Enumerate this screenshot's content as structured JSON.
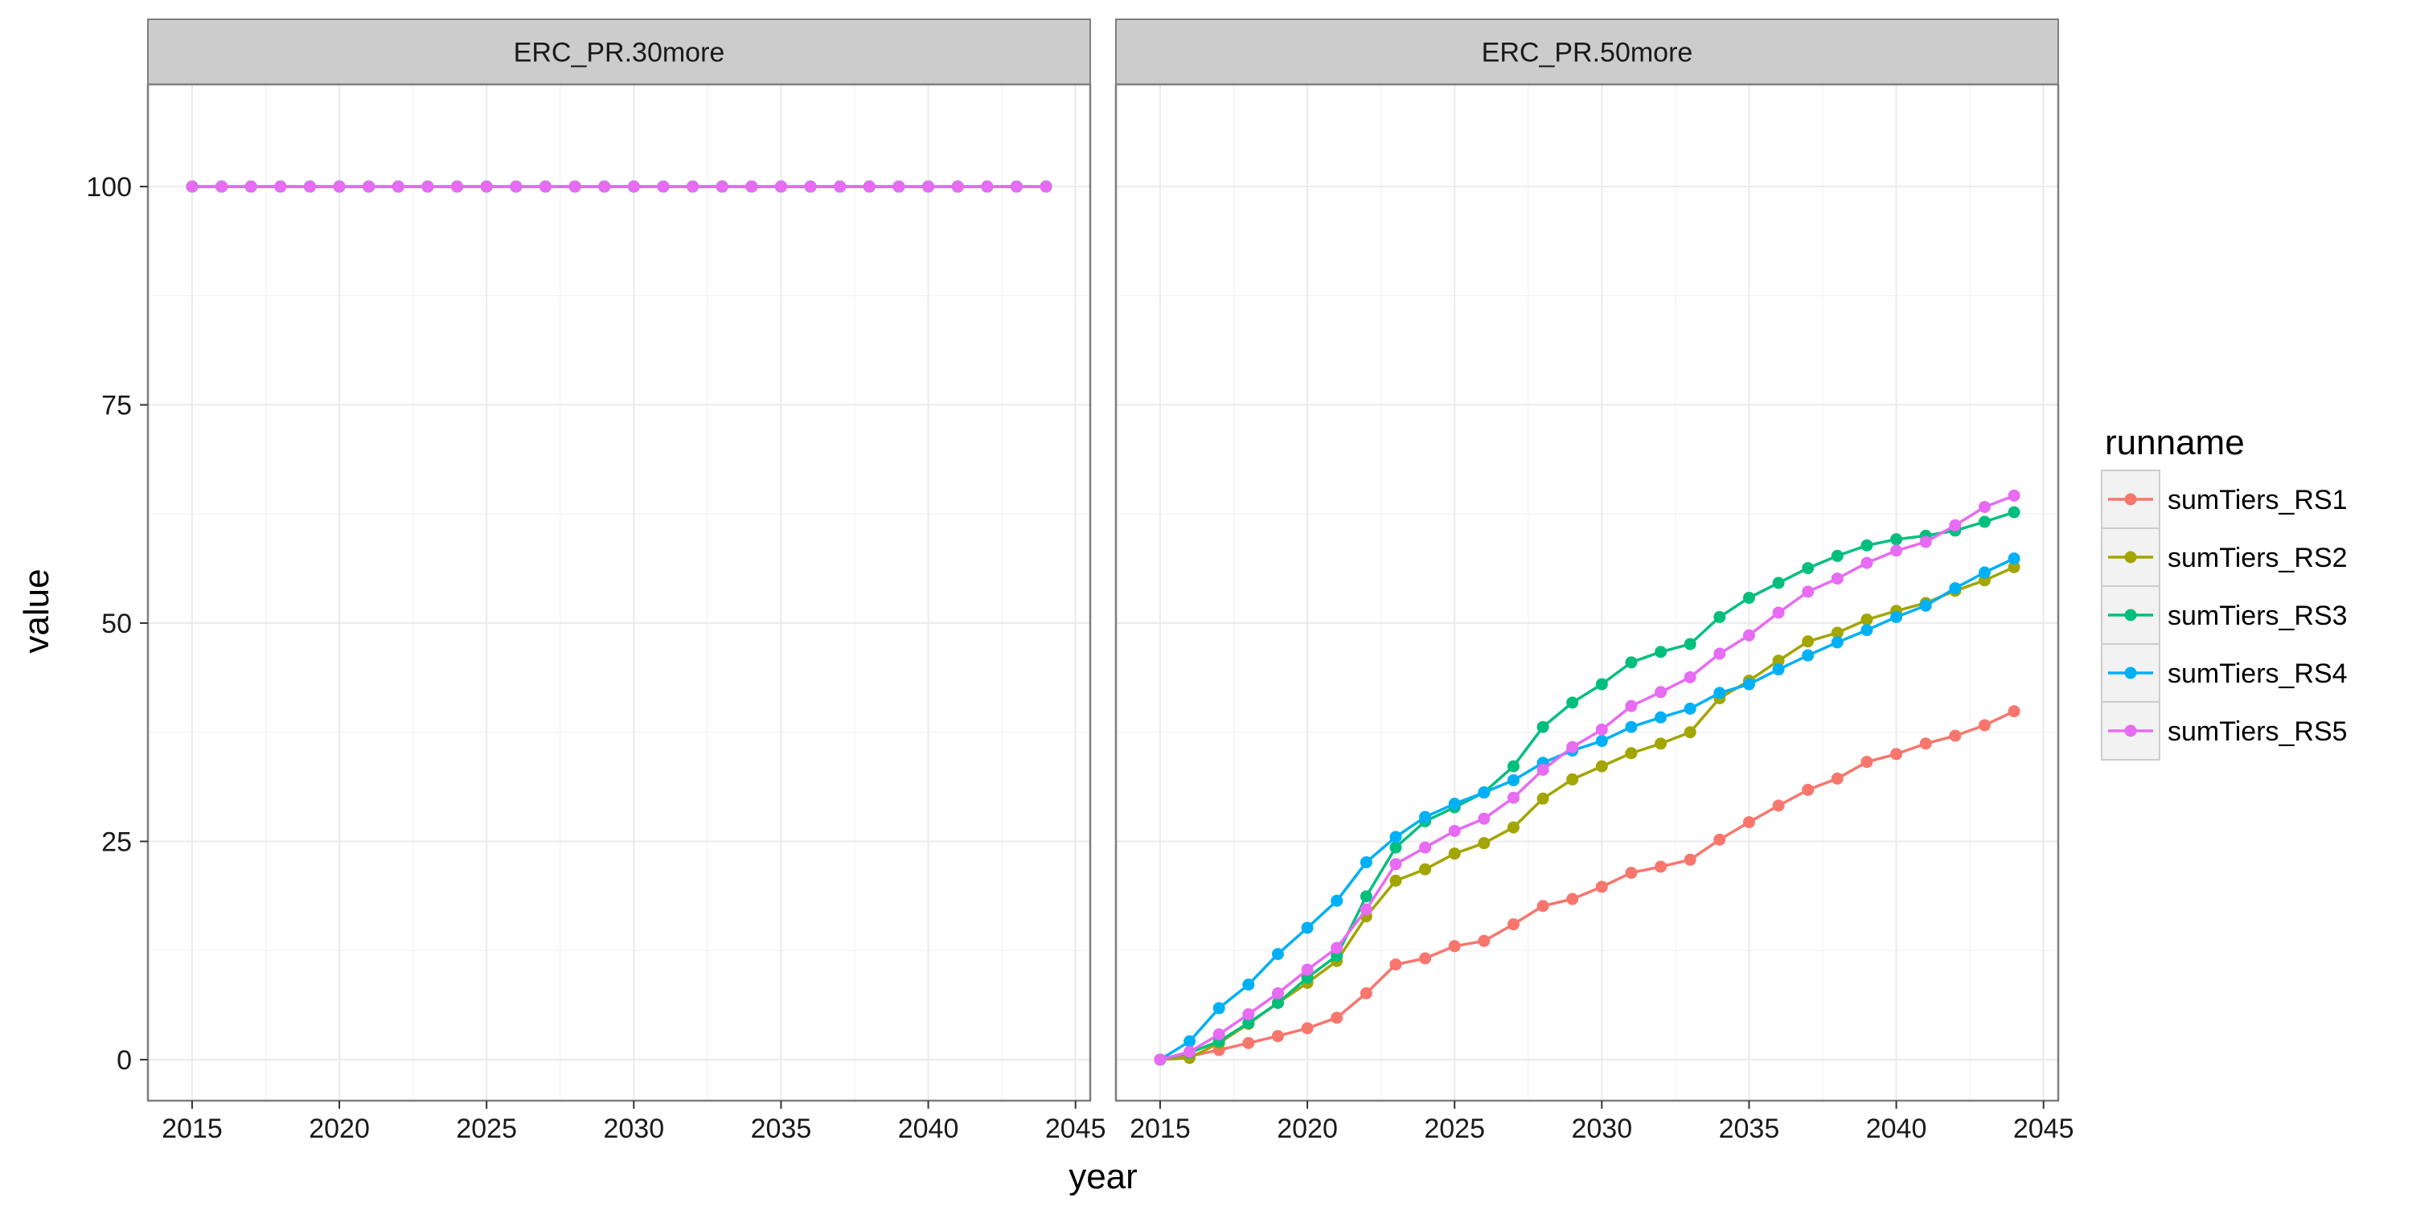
{
  "chart_data": {
    "type": "line",
    "xlabel": "year",
    "ylabel": "value",
    "xlim": [
      2013.5,
      2045.5
    ],
    "ylim": [
      -4.7,
      111.7
    ],
    "x_ticks": [
      2015,
      2020,
      2025,
      2030,
      2035,
      2040,
      2045
    ],
    "y_ticks": [
      0,
      25,
      50,
      75,
      100
    ],
    "grid": true,
    "legend": {
      "title": "runname",
      "placement": "right"
    },
    "x": [
      2015,
      2016,
      2017,
      2018,
      2019,
      2020,
      2021,
      2022,
      2023,
      2024,
      2025,
      2026,
      2027,
      2028,
      2029,
      2030,
      2031,
      2032,
      2033,
      2034,
      2035,
      2036,
      2037,
      2038,
      2039,
      2040,
      2041,
      2042,
      2043,
      2044
    ],
    "series_meta": [
      {
        "name": "sumTiers_RS1",
        "color": "#F8766D"
      },
      {
        "name": "sumTiers_RS2",
        "color": "#A3A500"
      },
      {
        "name": "sumTiers_RS3",
        "color": "#00BF7D"
      },
      {
        "name": "sumTiers_RS4",
        "color": "#00B0F6"
      },
      {
        "name": "sumTiers_RS5",
        "color": "#E76BF3"
      }
    ],
    "panels": [
      {
        "title": "ERC_PR.30more",
        "series": [
          {
            "name": "sumTiers_RS1",
            "values": [
              100,
              100,
              100,
              100,
              100,
              100,
              100,
              100,
              100,
              100,
              100,
              100,
              100,
              100,
              100,
              100,
              100,
              100,
              100,
              100,
              100,
              100,
              100,
              100,
              100,
              100,
              100,
              100,
              100,
              100
            ]
          },
          {
            "name": "sumTiers_RS2",
            "values": [
              100,
              100,
              100,
              100,
              100,
              100,
              100,
              100,
              100,
              100,
              100,
              100,
              100,
              100,
              100,
              100,
              100,
              100,
              100,
              100,
              100,
              100,
              100,
              100,
              100,
              100,
              100,
              100,
              100,
              100
            ]
          },
          {
            "name": "sumTiers_RS3",
            "values": [
              100,
              100,
              100,
              100,
              100,
              100,
              100,
              100,
              100,
              100,
              100,
              100,
              100,
              100,
              100,
              100,
              100,
              100,
              100,
              100,
              100,
              100,
              100,
              100,
              100,
              100,
              100,
              100,
              100,
              100
            ]
          },
          {
            "name": "sumTiers_RS4",
            "values": [
              100,
              100,
              100,
              100,
              100,
              100,
              100,
              100,
              100,
              100,
              100,
              100,
              100,
              100,
              100,
              100,
              100,
              100,
              100,
              100,
              100,
              100,
              100,
              100,
              100,
              100,
              100,
              100,
              100,
              100
            ]
          },
          {
            "name": "sumTiers_RS5",
            "values": [
              100,
              100,
              100,
              100,
              100,
              100,
              100,
              100,
              100,
              100,
              100,
              100,
              100,
              100,
              100,
              100,
              100,
              100,
              100,
              100,
              100,
              100,
              100,
              100,
              100,
              100,
              100,
              100,
              100,
              100
            ]
          }
        ]
      },
      {
        "title": "ERC_PR.50more",
        "series": [
          {
            "name": "sumTiers_RS1",
            "values": [
              0,
              0.4,
              1.1,
              1.9,
              2.7,
              3.6,
              4.8,
              7.6,
              10.9,
              11.6,
              13,
              13.6,
              15.5,
              17.6,
              18.4,
              19.8,
              21.4,
              22.1,
              22.9,
              25.2,
              27.2,
              29.1,
              30.9,
              32.2,
              34.1,
              35,
              36.2,
              37.1,
              38.3,
              39.9
            ]
          },
          {
            "name": "sumTiers_RS2",
            "values": [
              0,
              0.2,
              1.9,
              4.1,
              6.5,
              8.8,
              11.3,
              16.4,
              20.5,
              21.8,
              23.6,
              24.8,
              26.6,
              29.9,
              32.1,
              33.6,
              35.1,
              36.2,
              37.5,
              41.4,
              43.4,
              45.7,
              47.9,
              48.9,
              50.4,
              51.4,
              52.3,
              53.7,
              54.9,
              56.4
            ]
          },
          {
            "name": "sumTiers_RS3",
            "values": [
              0,
              0.8,
              2.1,
              4.2,
              6.5,
              9.4,
              11.9,
              18.7,
              24.3,
              27.3,
              28.9,
              30.6,
              33.6,
              38.1,
              40.9,
              43,
              45.5,
              46.7,
              47.6,
              50.7,
              52.9,
              54.6,
              56.3,
              57.7,
              58.9,
              59.6,
              60,
              60.6,
              61.6,
              62.7
            ]
          },
          {
            "name": "sumTiers_RS4",
            "values": [
              0,
              2.1,
              5.9,
              8.6,
              12.1,
              15.1,
              18.2,
              22.6,
              25.5,
              27.8,
              29.3,
              30.6,
              32,
              34,
              35.4,
              36.5,
              38.1,
              39.2,
              40.2,
              42,
              43,
              44.7,
              46.3,
              47.8,
              49.2,
              50.7,
              52,
              54,
              55.8,
              57.4
            ]
          },
          {
            "name": "sumTiers_RS5",
            "values": [
              0,
              0.9,
              2.9,
              5.2,
              7.6,
              10.3,
              12.8,
              17.2,
              22.4,
              24.3,
              26.2,
              27.6,
              30,
              33.2,
              35.8,
              37.8,
              40.5,
              42.1,
              43.8,
              46.5,
              48.6,
              51.2,
              53.6,
              55.1,
              56.9,
              58.3,
              59.3,
              61.2,
              63.3,
              64.6
            ]
          }
        ]
      }
    ]
  }
}
